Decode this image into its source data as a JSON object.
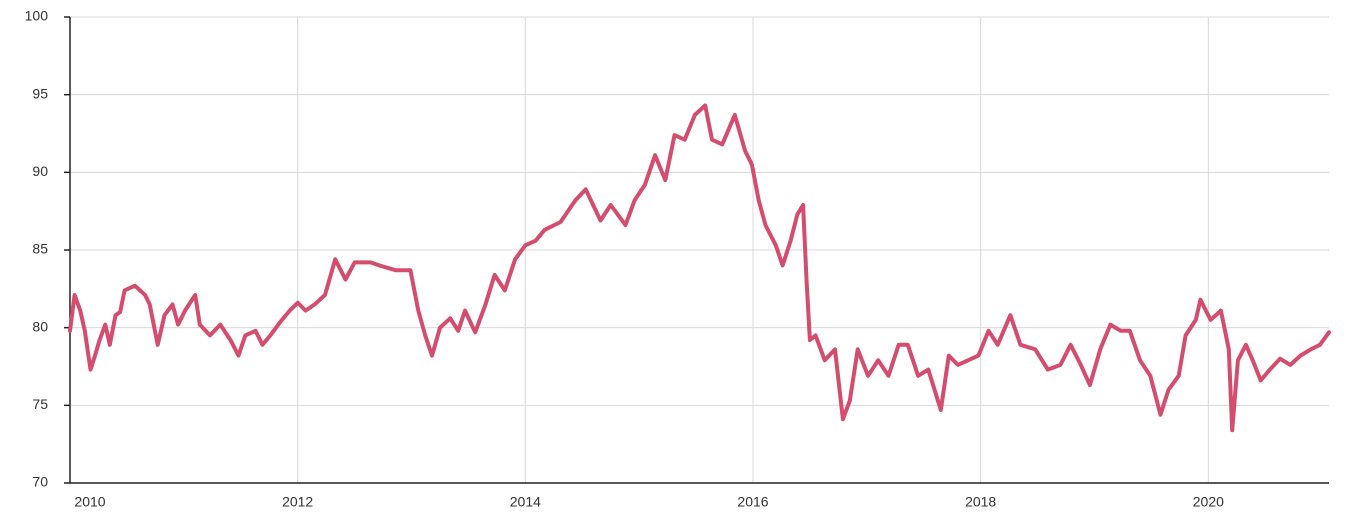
{
  "chart_data": {
    "type": "line",
    "x": [
      2010.0,
      2010.04,
      2010.09,
      2010.13,
      2010.18,
      2010.22,
      2010.26,
      2010.31,
      2010.35,
      2010.4,
      2010.44,
      2010.48,
      2010.57,
      2010.66,
      2010.7,
      2010.77,
      2010.83,
      2010.9,
      2010.95,
      2011.01,
      2011.1,
      2011.14,
      2011.23,
      2011.32,
      2011.41,
      2011.48,
      2011.54,
      2011.63,
      2011.69,
      2011.76,
      2011.85,
      2011.93,
      2012.0,
      2012.07,
      2012.15,
      2012.24,
      2012.33,
      2012.42,
      2012.5,
      2012.64,
      2012.72,
      2012.86,
      2012.99,
      2013.06,
      2013.12,
      2013.18,
      2013.25,
      2013.34,
      2013.41,
      2013.47,
      2013.56,
      2013.65,
      2013.73,
      2013.82,
      2013.91,
      2014.0,
      2014.09,
      2014.17,
      2014.31,
      2014.44,
      2014.53,
      2014.66,
      2014.75,
      2014.88,
      2014.96,
      2015.05,
      2015.14,
      2015.23,
      2015.31,
      2015.4,
      2015.49,
      2015.58,
      2015.64,
      2015.73,
      2015.84,
      2015.93,
      2015.99,
      2016.05,
      2016.11,
      2016.2,
      2016.26,
      2016.33,
      2016.39,
      2016.44,
      2016.47,
      2016.5,
      2016.55,
      2016.63,
      2016.72,
      2016.79,
      2016.85,
      2016.92,
      2017.01,
      2017.1,
      2017.19,
      2017.28,
      2017.36,
      2017.45,
      2017.54,
      2017.65,
      2017.72,
      2017.8,
      2017.89,
      2017.98,
      2018.07,
      2018.15,
      2018.26,
      2018.35,
      2018.48,
      2018.59,
      2018.7,
      2018.79,
      2018.88,
      2018.96,
      2019.05,
      2019.14,
      2019.23,
      2019.31,
      2019.4,
      2019.49,
      2019.58,
      2019.65,
      2019.74,
      2019.8,
      2019.89,
      2019.93,
      2020.02,
      2020.11,
      2020.18,
      2020.21,
      2020.26,
      2020.33,
      2020.39,
      2020.46,
      2020.54,
      2020.63,
      2020.72,
      2020.81,
      2020.9,
      2020.98,
      2021.06
    ],
    "series": [
      {
        "color": "#d44d6e",
        "values": [
          79.8,
          82.1,
          81.1,
          79.8,
          77.3,
          78.2,
          79.2,
          80.2,
          78.9,
          80.8,
          81.0,
          82.4,
          82.7,
          82.1,
          81.5,
          78.9,
          80.8,
          81.5,
          80.2,
          81.1,
          82.1,
          80.2,
          79.5,
          80.2,
          79.2,
          78.2,
          79.5,
          79.8,
          78.9,
          79.5,
          80.4,
          81.1,
          81.6,
          81.1,
          81.5,
          82.1,
          84.4,
          83.1,
          84.2,
          84.2,
          84.0,
          83.7,
          83.7,
          81.1,
          79.5,
          78.2,
          80.0,
          80.6,
          79.8,
          81.1,
          79.7,
          81.5,
          83.4,
          82.4,
          84.4,
          85.3,
          85.6,
          86.3,
          86.8,
          88.2,
          88.9,
          86.9,
          87.9,
          86.6,
          88.2,
          89.2,
          91.1,
          89.5,
          92.4,
          92.1,
          93.7,
          94.3,
          92.1,
          91.8,
          93.7,
          91.4,
          90.5,
          88.2,
          86.6,
          85.3,
          84.0,
          85.6,
          87.3,
          87.9,
          83.1,
          79.2,
          79.5,
          77.9,
          78.6,
          74.1,
          75.3,
          78.6,
          76.9,
          77.9,
          76.9,
          78.9,
          78.9,
          76.9,
          77.3,
          74.7,
          78.2,
          77.6,
          77.9,
          78.2,
          79.8,
          78.9,
          80.8,
          78.9,
          78.6,
          77.3,
          77.6,
          78.9,
          77.6,
          76.3,
          78.6,
          80.2,
          79.8,
          79.8,
          77.9,
          76.9,
          74.4,
          76.0,
          76.9,
          79.5,
          80.5,
          81.8,
          80.5,
          81.1,
          78.6,
          73.4,
          77.9,
          78.9,
          77.9,
          76.6,
          77.3,
          78.0,
          77.6,
          78.2,
          78.6,
          78.9,
          79.7
        ]
      }
    ],
    "xlim": [
      2010,
      2021.06
    ],
    "xticks": [
      2010,
      2012,
      2014,
      2016,
      2018,
      2020
    ],
    "ylim": [
      70,
      100
    ],
    "yticks": [
      70,
      75,
      80,
      85,
      90,
      95,
      100
    ],
    "grid": true
  }
}
